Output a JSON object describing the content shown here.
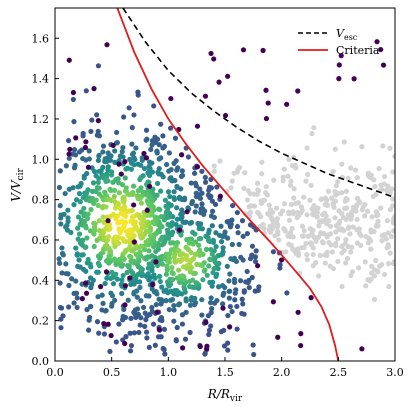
{
  "chart_data": {
    "type": "scatter",
    "title": "",
    "xlabel": "R/R_vir",
    "ylabel": "V/V_cir",
    "xlim": [
      0.0,
      3.0
    ],
    "ylim": [
      0.0,
      1.75
    ],
    "xticks": [
      "0.0",
      "0.5",
      "1.0",
      "1.5",
      "2.0",
      "2.5",
      "3.0"
    ],
    "yticks": [
      "0.0",
      "0.2",
      "0.4",
      "0.6",
      "0.8",
      "1.0",
      "1.2",
      "1.4",
      "1.6"
    ],
    "grid": false,
    "legend": {
      "placement": "top-right",
      "entries": [
        {
          "label": "V_esc",
          "style": "dashed",
          "color": "#000000"
        },
        {
          "label": "Criteria",
          "style": "solid",
          "color": "#e41a1c"
        }
      ]
    },
    "colors": {
      "low_density": "#440154",
      "mid_density": "#21918c",
      "high_density": "#fde725",
      "excluded": "#d3d3d3",
      "criteria_line": "#e41a1c",
      "vesc_line": "#000000"
    },
    "series": [
      {
        "name": "V_esc",
        "kind": "line",
        "x": [
          0.6,
          0.8,
          1.0,
          1.2,
          1.4,
          1.6,
          1.8,
          2.0,
          2.2,
          2.4,
          2.6,
          2.8,
          3.0
        ],
        "y": [
          1.75,
          1.58,
          1.44,
          1.33,
          1.24,
          1.16,
          1.09,
          1.03,
          0.98,
          0.93,
          0.89,
          0.85,
          0.81
        ]
      },
      {
        "name": "Criteria",
        "kind": "line",
        "x": [
          0.55,
          0.7,
          0.85,
          1.0,
          1.15,
          1.3,
          1.5,
          1.7,
          1.9,
          2.1,
          2.25,
          2.35,
          2.42,
          2.47,
          2.5
        ],
        "y": [
          1.75,
          1.53,
          1.35,
          1.2,
          1.08,
          0.97,
          0.84,
          0.71,
          0.59,
          0.46,
          0.36,
          0.27,
          0.18,
          0.08,
          0.0
        ]
      }
    ],
    "scatter_regions": [
      {
        "color": "excluded",
        "x_range": [
          1.3,
          3.0
        ],
        "y_range": [
          0.3,
          1.2
        ],
        "count": 520
      },
      {
        "color": "low_density",
        "x_range": [
          0.05,
          2.9
        ],
        "y_range": [
          0.05,
          1.6
        ],
        "count": 120
      },
      {
        "color": "mid_density",
        "x_range": [
          0.05,
          2.1
        ],
        "y_range": [
          0.1,
          1.35
        ],
        "count": 1300
      },
      {
        "color": "high_density",
        "x_range": [
          0.35,
          1.4
        ],
        "y_range": [
          0.45,
          0.95
        ],
        "count": 420
      }
    ]
  }
}
